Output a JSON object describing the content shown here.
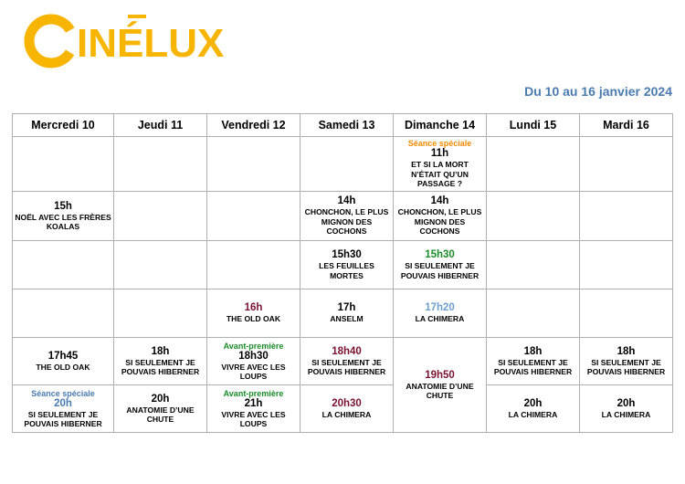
{
  "brand": {
    "name": "CINÉLUX",
    "accent": "#f7b500"
  },
  "period": "Du 10 au 16 janvier 2024",
  "colors": {
    "default": "#000000",
    "maroon": "#7a1232",
    "green": "#1a8c2a",
    "lightblue": "#6f9fcf",
    "orange": "#f08a00",
    "blue": "#4a7bb0"
  },
  "days": [
    "Mercredi 10",
    "Jeudi 11",
    "Vendredi 12",
    "Samedi 13",
    "Dimanche 14",
    "Lundi 15",
    "Mardi 16"
  ],
  "rows": [
    [
      null,
      null,
      null,
      null,
      {
        "note": "Séance spéciale",
        "note_color": "orange",
        "time": "11h",
        "title": "ET SI LA MORT N’ÉTAIT QU’UN PASSAGE ?"
      },
      null,
      null
    ],
    [
      {
        "time": "15h",
        "title": "NOËL AVEC LES FRÈRES KOALAS"
      },
      null,
      null,
      {
        "time": "14h",
        "title": "CHONCHON, LE PLUS MIGNON DES COCHONS"
      },
      {
        "time": "14h",
        "title": "CHONCHON, LE PLUS MIGNON DES COCHONS"
      },
      null,
      null
    ],
    [
      null,
      null,
      null,
      {
        "time": "15h30",
        "title": "LES FEUILLES MORTES"
      },
      {
        "time": "15h30",
        "time_color": "green",
        "title": "SI SEULEMENT JE POUVAIS HIBERNER"
      },
      null,
      null
    ],
    [
      null,
      null,
      {
        "time": "16h",
        "time_color": "maroon",
        "title": "THE OLD OAK"
      },
      {
        "time": "17h",
        "title": "ANSELM"
      },
      {
        "time": "17h20",
        "time_color": "lightblue",
        "title": "LA CHIMERA"
      },
      null,
      null
    ],
    [
      {
        "time": "17h45",
        "title": "THE OLD OAK"
      },
      {
        "time": "18h",
        "title": "SI SEULEMENT JE POUVAIS HIBERNER"
      },
      {
        "note": "Avant-première",
        "note_color": "green",
        "time": "18h30",
        "title": "VIVRE AVEC LES LOUPS"
      },
      {
        "time": "18h40",
        "time_color": "maroon",
        "title": "SI SEULEMENT JE POUVAIS HIBERNER"
      },
      {
        "time": "19h50",
        "time_color": "maroon",
        "title": "ANATOMIE D’UNE CHUTE",
        "rowspan": 2
      },
      {
        "time": "18h",
        "title": "SI SEULEMENT JE POUVAIS HIBERNER"
      },
      {
        "time": "18h",
        "title": "SI SEULEMENT JE POUVAIS HIBERNER"
      }
    ],
    [
      {
        "note": "Séance spéciale",
        "note_color": "blue",
        "time": "20h",
        "time_color": "blue",
        "title": "SI SEULEMENT JE POUVAIS HIBERNER"
      },
      {
        "time": "20h",
        "title": "ANATOMIE D’UNE CHUTE"
      },
      {
        "note": "Avant-première",
        "note_color": "green",
        "time": "21h",
        "title": "VIVRE AVEC LES LOUPS"
      },
      {
        "time": "20h30",
        "time_color": "maroon",
        "title": "LA CHIMERA"
      },
      "spanned",
      {
        "time": "20h",
        "title": "LA CHIMERA"
      },
      {
        "time": "20h",
        "title": "LA CHIMERA"
      }
    ]
  ]
}
